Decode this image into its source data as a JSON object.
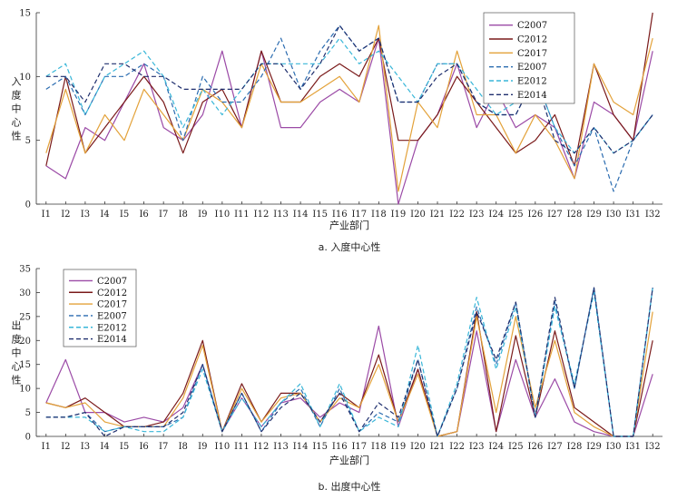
{
  "chart_data": [
    {
      "type": "line",
      "caption": "a. 入度中心性",
      "xlabel": "产业部门",
      "ylabel": "入度中心性",
      "ylim": [
        0,
        15
      ],
      "yticks": [
        0,
        5,
        10,
        15
      ],
      "categories": [
        "I1",
        "I2",
        "I3",
        "I4",
        "I5",
        "I6",
        "I7",
        "I8",
        "I9",
        "I10",
        "I11",
        "I12",
        "I13",
        "I14",
        "I15",
        "I16",
        "I17",
        "I18",
        "I19",
        "I20",
        "I21",
        "I22",
        "I23",
        "I24",
        "I25",
        "I26",
        "I27",
        "I28",
        "I29",
        "I30",
        "I31",
        "I32"
      ],
      "legend_position": "top-right",
      "series": [
        {
          "name": "C2007",
          "color": "#9b4aa6",
          "dash": false,
          "values": [
            3,
            2,
            6,
            5,
            8,
            11,
            6,
            5,
            7,
            12,
            6,
            12,
            6,
            6,
            8,
            9,
            8,
            13,
            0,
            5,
            7,
            11,
            6,
            9,
            6,
            7,
            6,
            2,
            8,
            7,
            5,
            12
          ]
        },
        {
          "name": "C2012",
          "color": "#7a1a1a",
          "dash": false,
          "values": [
            3,
            10,
            4,
            6,
            8,
            10,
            8,
            4,
            8,
            9,
            6,
            12,
            8,
            8,
            10,
            11,
            10,
            13,
            5,
            5,
            7,
            10,
            8,
            6,
            4,
            5,
            7,
            3,
            11,
            7,
            5,
            15
          ]
        },
        {
          "name": "C2017",
          "color": "#e3a23a",
          "dash": false,
          "values": [
            4,
            9,
            4,
            7,
            5,
            9,
            7,
            5,
            9,
            8,
            6,
            11,
            8,
            8,
            9,
            10,
            8,
            14,
            1,
            8,
            6,
            12,
            7,
            7,
            4,
            7,
            5,
            2,
            11,
            8,
            7,
            13
          ]
        },
        {
          "name": "E2007",
          "color": "#2b6cb0",
          "dash": true,
          "values": [
            9,
            10,
            7,
            10,
            10,
            11,
            10,
            5,
            10,
            8,
            8,
            10,
            13,
            9,
            12,
            14,
            12,
            13,
            8,
            8,
            11,
            11,
            8,
            7,
            7,
            10,
            6,
            3,
            6,
            1,
            5,
            7
          ]
        },
        {
          "name": "E2012",
          "color": "#38b6d8",
          "dash": true,
          "values": [
            10,
            11,
            7,
            10,
            11,
            12,
            10,
            6,
            9,
            7,
            9,
            11,
            11,
            11,
            11,
            13,
            11,
            12,
            10,
            8,
            11,
            11,
            9,
            7,
            8,
            10,
            6,
            4,
            6,
            4,
            5,
            7
          ]
        },
        {
          "name": "E2014",
          "color": "#1f2f6e",
          "dash": true,
          "values": [
            10,
            10,
            8,
            11,
            11,
            10,
            10,
            9,
            9,
            9,
            9,
            11,
            11,
            9,
            11,
            14,
            12,
            13,
            8,
            8,
            10,
            11,
            8,
            7,
            7,
            10,
            5,
            4,
            6,
            4,
            5,
            7
          ]
        }
      ]
    },
    {
      "type": "line",
      "caption": "b. 出度中心性",
      "xlabel": "产业部门",
      "ylabel": "出度中心性",
      "ylim": [
        0,
        35
      ],
      "yticks": [
        0,
        5,
        10,
        15,
        20,
        25,
        30,
        35
      ],
      "categories": [
        "I1",
        "I2",
        "I3",
        "I4",
        "I5",
        "I6",
        "I7",
        "I8",
        "I9",
        "I10",
        "I11",
        "I12",
        "I13",
        "I14",
        "I15",
        "I16",
        "I17",
        "I18",
        "I19",
        "I20",
        "I21",
        "I22",
        "I23",
        "I24",
        "I25",
        "I26",
        "I27",
        "I28",
        "I29",
        "I30",
        "I31",
        "I32"
      ],
      "legend_position": "top-left",
      "series": [
        {
          "name": "C2007",
          "color": "#9b4aa6",
          "dash": false,
          "values": [
            7,
            16,
            5,
            5,
            3,
            4,
            3,
            6,
            15,
            1,
            8,
            2,
            7,
            8,
            4,
            7,
            5,
            23,
            2,
            14,
            0,
            1,
            22,
            1,
            16,
            4,
            12,
            3,
            1,
            0,
            0,
            13
          ]
        },
        {
          "name": "C2012",
          "color": "#7a1a1a",
          "dash": false,
          "values": [
            7,
            6,
            8,
            5,
            2,
            2,
            3,
            9,
            20,
            1,
            11,
            3,
            9,
            9,
            3,
            9,
            6,
            17,
            3,
            14,
            0,
            1,
            26,
            1,
            21,
            4,
            22,
            6,
            3,
            0,
            0,
            20
          ]
        },
        {
          "name": "C2017",
          "color": "#e3a23a",
          "dash": false,
          "values": [
            7,
            6,
            7,
            3,
            2,
            2,
            2,
            8,
            19,
            1,
            10,
            3,
            8,
            9,
            3,
            8,
            6,
            15,
            3,
            13,
            0,
            1,
            25,
            5,
            25,
            6,
            20,
            5,
            2,
            0,
            0,
            26
          ]
        },
        {
          "name": "E2007",
          "color": "#2b6cb0",
          "dash": true,
          "values": [
            4,
            4,
            5,
            1,
            2,
            2,
            2,
            4,
            15,
            1,
            9,
            1,
            7,
            10,
            2,
            10,
            1,
            5,
            3,
            16,
            0,
            10,
            27,
            15,
            28,
            4,
            28,
            10,
            31,
            0,
            0,
            31
          ]
        },
        {
          "name": "E2012",
          "color": "#38b6d8",
          "dash": true,
          "values": [
            4,
            4,
            4,
            1,
            2,
            1,
            1,
            4,
            14,
            1,
            8,
            2,
            7,
            11,
            2,
            11,
            1,
            4,
            2,
            19,
            0,
            11,
            29,
            14,
            27,
            4,
            27,
            11,
            30,
            0,
            0,
            31
          ]
        },
        {
          "name": "E2014",
          "color": "#1f2f6e",
          "dash": true,
          "values": [
            4,
            4,
            5,
            0,
            2,
            2,
            2,
            5,
            15,
            1,
            9,
            1,
            6,
            9,
            3,
            9,
            1,
            7,
            4,
            16,
            0,
            10,
            26,
            16,
            28,
            4,
            29,
            10,
            31,
            0,
            0,
            31
          ]
        }
      ]
    }
  ]
}
